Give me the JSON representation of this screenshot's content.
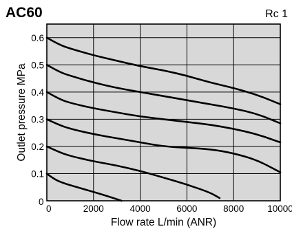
{
  "header": {
    "model": "AC60",
    "port_size": "Rc 1"
  },
  "chart_data": {
    "type": "line",
    "title": "",
    "xlabel": "Flow rate  L/min (ANR)",
    "ylabel": "Outlet pressure  MPa",
    "xlim": [
      0,
      10000
    ],
    "ylim": [
      0,
      0.65
    ],
    "x_ticks": [
      0,
      2000,
      4000,
      6000,
      8000,
      10000
    ],
    "x_tick_labels": [
      "0",
      "2000",
      "4000",
      "6000",
      "8000",
      "10000"
    ],
    "y_ticks": [
      0.1,
      0.2,
      0.3,
      0.4,
      0.5,
      0.6
    ],
    "y_tick_labels": [
      "0.1",
      "0.2",
      "0.3",
      "0.4",
      "0.5",
      "0.6"
    ],
    "origin_label": "0",
    "grid": true,
    "background_color": "#d8d8d8",
    "line_color": "#000000",
    "series": [
      {
        "points": [
          [
            0,
            0.6
          ],
          [
            500,
            0.575
          ],
          [
            1000,
            0.56
          ],
          [
            2000,
            0.535
          ],
          [
            3000,
            0.515
          ],
          [
            4000,
            0.495
          ],
          [
            5000,
            0.48
          ],
          [
            6000,
            0.46
          ],
          [
            7000,
            0.435
          ],
          [
            8000,
            0.415
          ],
          [
            9000,
            0.39
          ],
          [
            10000,
            0.355
          ]
        ]
      },
      {
        "points": [
          [
            0,
            0.5
          ],
          [
            500,
            0.475
          ],
          [
            1000,
            0.46
          ],
          [
            2000,
            0.435
          ],
          [
            3000,
            0.415
          ],
          [
            4000,
            0.4
          ],
          [
            5000,
            0.385
          ],
          [
            6000,
            0.37
          ],
          [
            7000,
            0.355
          ],
          [
            8000,
            0.34
          ],
          [
            9000,
            0.32
          ],
          [
            10000,
            0.285
          ]
        ]
      },
      {
        "points": [
          [
            0,
            0.4
          ],
          [
            500,
            0.375
          ],
          [
            1000,
            0.36
          ],
          [
            2000,
            0.34
          ],
          [
            3000,
            0.325
          ],
          [
            4000,
            0.31
          ],
          [
            5000,
            0.3
          ],
          [
            6000,
            0.29
          ],
          [
            7000,
            0.28
          ],
          [
            8000,
            0.265
          ],
          [
            9000,
            0.245
          ],
          [
            10000,
            0.215
          ]
        ]
      },
      {
        "points": [
          [
            0,
            0.3
          ],
          [
            500,
            0.28
          ],
          [
            1000,
            0.265
          ],
          [
            2000,
            0.245
          ],
          [
            3000,
            0.23
          ],
          [
            4000,
            0.215
          ],
          [
            5000,
            0.2
          ],
          [
            6000,
            0.195
          ],
          [
            7000,
            0.19
          ],
          [
            8000,
            0.175
          ],
          [
            9000,
            0.15
          ],
          [
            10000,
            0.105
          ]
        ]
      },
      {
        "points": [
          [
            0,
            0.2
          ],
          [
            500,
            0.18
          ],
          [
            1000,
            0.165
          ],
          [
            2000,
            0.145
          ],
          [
            3000,
            0.13
          ],
          [
            4000,
            0.11
          ],
          [
            5000,
            0.085
          ],
          [
            6000,
            0.06
          ],
          [
            7000,
            0.03
          ],
          [
            7400,
            0.01
          ]
        ]
      },
      {
        "points": [
          [
            0,
            0.1
          ],
          [
            300,
            0.08
          ],
          [
            700,
            0.065
          ],
          [
            1500,
            0.045
          ],
          [
            2500,
            0.02
          ],
          [
            3200,
            0.0
          ]
        ]
      }
    ]
  }
}
